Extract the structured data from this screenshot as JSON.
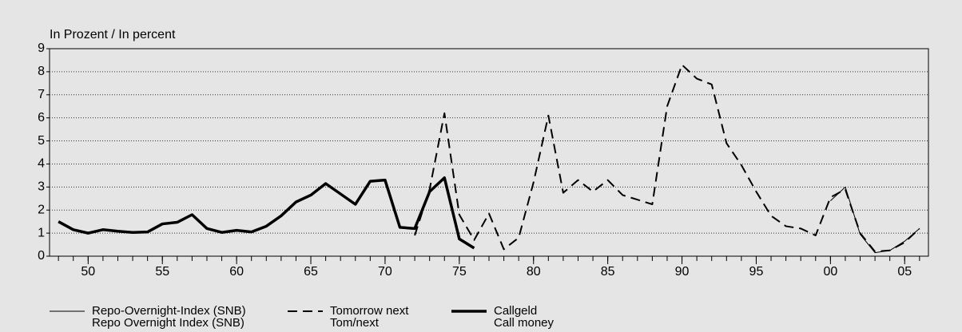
{
  "chart_data": {
    "type": "line",
    "y_label": "In Prozent / In percent",
    "x": [
      1948,
      1949,
      1950,
      1951,
      1952,
      1953,
      1954,
      1955,
      1956,
      1957,
      1958,
      1959,
      1960,
      1961,
      1962,
      1963,
      1964,
      1965,
      1966,
      1967,
      1968,
      1969,
      1970,
      1971,
      1972,
      1973,
      1974,
      1975,
      1976,
      1977,
      1978,
      1979,
      1980,
      1981,
      1982,
      1983,
      1984,
      1985,
      1986,
      1987,
      1988,
      1989,
      1990,
      1991,
      1992,
      1993,
      1994,
      1995,
      1996,
      1997,
      1998,
      1999,
      2000,
      2001,
      2002,
      2003,
      2004,
      2005,
      2006
    ],
    "xlim": [
      1947.4,
      2006.6
    ],
    "xticks": [
      {
        "value": 1950,
        "label": "50"
      },
      {
        "value": 1955,
        "label": "55"
      },
      {
        "value": 1960,
        "label": "60"
      },
      {
        "value": 1965,
        "label": "65"
      },
      {
        "value": 1970,
        "label": "70"
      },
      {
        "value": 1975,
        "label": "75"
      },
      {
        "value": 1980,
        "label": "80"
      },
      {
        "value": 1985,
        "label": "85"
      },
      {
        "value": 1990,
        "label": "90"
      },
      {
        "value": 1995,
        "label": "95"
      },
      {
        "value": 2000,
        "label": "00"
      },
      {
        "value": 2005,
        "label": "05"
      }
    ],
    "xminorticks": [
      1948,
      1949,
      1950,
      1951,
      1952,
      1953,
      1954,
      1955,
      1956,
      1957,
      1958,
      1959,
      1960,
      1961,
      1962,
      1963,
      1964,
      1965,
      1966,
      1967,
      1968,
      1969,
      1970,
      1971,
      1972,
      1973,
      1974,
      1975,
      1976,
      1977,
      1978,
      1979,
      1980,
      1981,
      1982,
      1983,
      1984,
      1985,
      1986,
      1987,
      1988,
      1989,
      1990,
      1991,
      1992,
      1993,
      1994,
      1995,
      1996,
      1997,
      1998,
      1999,
      2000,
      2001,
      2002,
      2003,
      2004,
      2005,
      2006
    ],
    "ylim": [
      0,
      9
    ],
    "yticks": [
      0,
      1,
      2,
      3,
      4,
      5,
      6,
      7,
      8,
      9
    ],
    "grid": true,
    "series": [
      {
        "name": "Repo-Overnight-Index (SNB)\nRepo Overnight Index (SNB)",
        "color": "#000000",
        "width": 1,
        "dashed": false,
        "values": [
          null,
          null,
          null,
          null,
          null,
          null,
          null,
          null,
          null,
          null,
          null,
          null,
          null,
          null,
          null,
          null,
          null,
          null,
          null,
          null,
          null,
          null,
          null,
          null,
          null,
          null,
          null,
          null,
          null,
          null,
          null,
          null,
          null,
          null,
          null,
          null,
          null,
          null,
          null,
          null,
          null,
          null,
          null,
          null,
          null,
          null,
          null,
          null,
          null,
          null,
          null,
          null,
          2.4,
          3.0,
          0.95,
          0.15,
          0.25,
          0.65,
          1.2
        ]
      },
      {
        "name": "Tomorrow next\nTom/next",
        "color": "#000000",
        "width": 2,
        "dashed": true,
        "values": [
          null,
          null,
          null,
          null,
          null,
          null,
          null,
          null,
          null,
          null,
          null,
          null,
          null,
          null,
          null,
          null,
          null,
          null,
          null,
          null,
          null,
          null,
          null,
          null,
          0.9,
          2.9,
          6.2,
          1.8,
          0.7,
          1.85,
          0.3,
          0.8,
          3.2,
          6.1,
          2.75,
          3.3,
          2.8,
          3.3,
          2.65,
          2.45,
          2.25,
          6.5,
          8.3,
          7.7,
          7.45,
          4.9,
          3.95,
          2.8,
          1.75,
          1.3,
          1.2,
          0.9,
          2.55,
          2.9,
          1.0,
          0.2,
          0.25,
          0.6,
          1.2
        ]
      },
      {
        "name": "Callgeld\nCall money",
        "color": "#000000",
        "width": 3.5,
        "dashed": false,
        "values": [
          1.5,
          1.15,
          1.0,
          1.15,
          1.08,
          1.03,
          1.05,
          1.4,
          1.47,
          1.8,
          1.2,
          1.03,
          1.12,
          1.05,
          1.3,
          1.75,
          2.35,
          2.65,
          3.15,
          2.7,
          2.25,
          3.25,
          3.3,
          1.25,
          1.2,
          2.8,
          3.4,
          0.75,
          0.35,
          null,
          null,
          null,
          null,
          null,
          null,
          null,
          null,
          null,
          null,
          null,
          null,
          null,
          null,
          null,
          null,
          null,
          null,
          null,
          null,
          null,
          null,
          null,
          null,
          null,
          null,
          null,
          null,
          null,
          null
        ]
      }
    ]
  }
}
